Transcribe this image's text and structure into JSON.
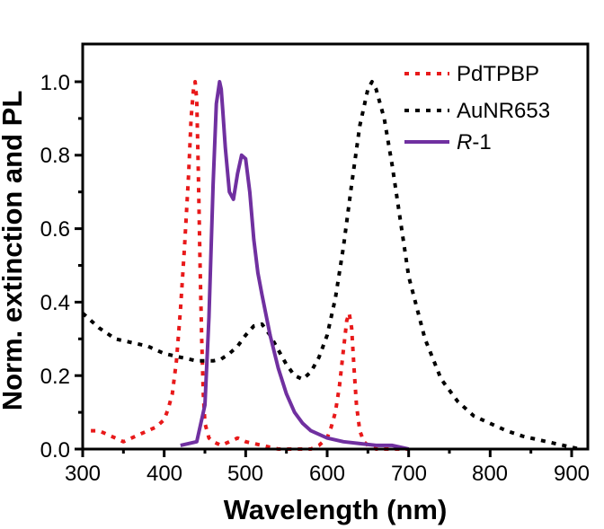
{
  "chart_data": {
    "type": "line",
    "title": "",
    "xlabel": "Wavelength (nm)",
    "ylabel": "Norm. extinction and PL",
    "xlim": [
      300,
      920
    ],
    "ylim": [
      0,
      1.1
    ],
    "x_ticks": [
      300,
      400,
      500,
      600,
      700,
      800,
      900
    ],
    "x_tick_labels": [
      "300",
      "400",
      "500",
      "600",
      "700",
      "800",
      "900"
    ],
    "y_ticks": [
      0.0,
      0.2,
      0.4,
      0.6,
      0.8,
      1.0
    ],
    "y_tick_labels": [
      "0.0",
      "0.2",
      "0.4",
      "0.6",
      "0.8",
      "1.0"
    ],
    "grid": false,
    "legend_position": "top-right",
    "series": [
      {
        "name": "PdTPBP",
        "legend_label": "PdTPBP",
        "color": "#e8191a",
        "style": "dotted",
        "x": [
          310,
          320,
          330,
          340,
          350,
          360,
          370,
          380,
          390,
          400,
          405,
          410,
          415,
          420,
          425,
          430,
          433,
          436,
          438,
          440,
          442,
          444,
          446,
          448,
          450,
          455,
          460,
          470,
          480,
          490,
          500,
          520,
          540,
          560,
          580,
          590,
          600,
          605,
          610,
          615,
          620,
          624,
          627,
          630,
          633,
          636,
          640,
          645,
          650,
          660,
          680,
          700
        ],
        "values": [
          0.05,
          0.05,
          0.04,
          0.03,
          0.02,
          0.03,
          0.04,
          0.05,
          0.06,
          0.08,
          0.11,
          0.15,
          0.24,
          0.38,
          0.55,
          0.75,
          0.9,
          0.98,
          1.0,
          0.95,
          0.75,
          0.5,
          0.3,
          0.15,
          0.07,
          0.03,
          0.02,
          0.01,
          0.02,
          0.03,
          0.02,
          0.01,
          0.0,
          0.0,
          0.0,
          0.01,
          0.03,
          0.06,
          0.1,
          0.17,
          0.27,
          0.35,
          0.37,
          0.33,
          0.22,
          0.12,
          0.05,
          0.02,
          0.01,
          0.0,
          0.0,
          0.0
        ]
      },
      {
        "name": "AuNR653",
        "legend_label": "AuNR653",
        "color": "#000000",
        "style": "dotted",
        "x": [
          300,
          320,
          340,
          360,
          380,
          400,
          420,
          440,
          460,
          470,
          480,
          490,
          500,
          510,
          520,
          530,
          540,
          550,
          560,
          570,
          580,
          590,
          600,
          610,
          620,
          630,
          640,
          650,
          655,
          660,
          670,
          680,
          690,
          700,
          720,
          740,
          760,
          780,
          800,
          820,
          840,
          860,
          880,
          900,
          910
        ],
        "values": [
          0.37,
          0.33,
          0.3,
          0.29,
          0.28,
          0.26,
          0.25,
          0.24,
          0.24,
          0.245,
          0.26,
          0.28,
          0.31,
          0.335,
          0.34,
          0.31,
          0.27,
          0.23,
          0.2,
          0.19,
          0.21,
          0.25,
          0.31,
          0.41,
          0.55,
          0.72,
          0.88,
          0.98,
          1.0,
          0.98,
          0.9,
          0.77,
          0.62,
          0.47,
          0.3,
          0.19,
          0.13,
          0.09,
          0.07,
          0.05,
          0.035,
          0.025,
          0.015,
          0.005,
          0.0
        ]
      },
      {
        "name": "R-1",
        "legend_label_italic": "R",
        "legend_label_rest": "-1",
        "color": "#7030a0",
        "style": "solid",
        "x": [
          420,
          440,
          450,
          455,
          460,
          464,
          468,
          470,
          472,
          475,
          480,
          485,
          490,
          495,
          500,
          505,
          510,
          515,
          520,
          530,
          540,
          550,
          560,
          570,
          580,
          600,
          620,
          640,
          660,
          680,
          700
        ],
        "values": [
          0.01,
          0.02,
          0.12,
          0.36,
          0.72,
          0.94,
          1.0,
          0.98,
          0.92,
          0.82,
          0.7,
          0.68,
          0.75,
          0.8,
          0.79,
          0.7,
          0.57,
          0.48,
          0.42,
          0.31,
          0.22,
          0.15,
          0.1,
          0.07,
          0.05,
          0.03,
          0.02,
          0.015,
          0.01,
          0.01,
          0.0
        ]
      }
    ]
  }
}
